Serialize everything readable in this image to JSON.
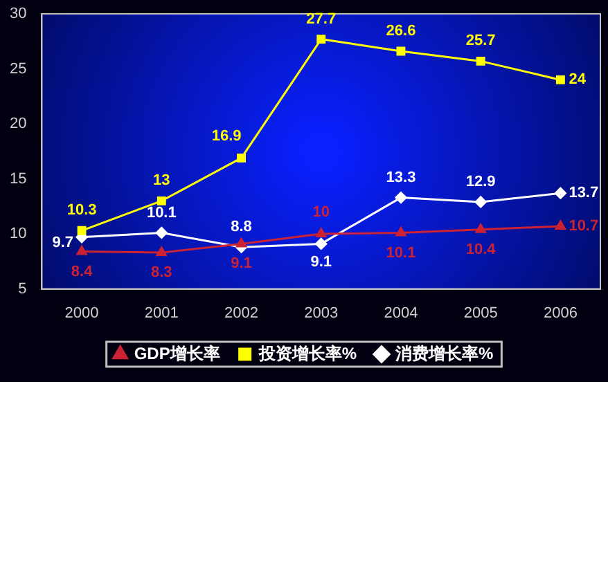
{
  "chart_data": {
    "type": "line",
    "categories": [
      "2000",
      "2001",
      "2002",
      "2003",
      "2004",
      "2005",
      "2006"
    ],
    "series": [
      {
        "name": "GDP增长率",
        "color": "#cc2233",
        "marker": "triangle",
        "values": [
          8.4,
          8.3,
          9.1,
          10,
          10.1,
          10.4,
          10.7
        ]
      },
      {
        "name": "投资增长率%",
        "color": "#ffff00",
        "marker": "square",
        "values": [
          10.3,
          13,
          16.9,
          27.7,
          26.6,
          25.7,
          24
        ]
      },
      {
        "name": "消费增长率%",
        "color": "#ffffff",
        "marker": "diamond",
        "values": [
          9.7,
          10.1,
          8.8,
          9.1,
          13.3,
          12.9,
          13.7
        ]
      }
    ],
    "ylim": [
      5,
      30
    ],
    "yticks": [
      5,
      10,
      15,
      20,
      25,
      30
    ],
    "grid": false,
    "legend": "bottom",
    "data_labels": true
  }
}
